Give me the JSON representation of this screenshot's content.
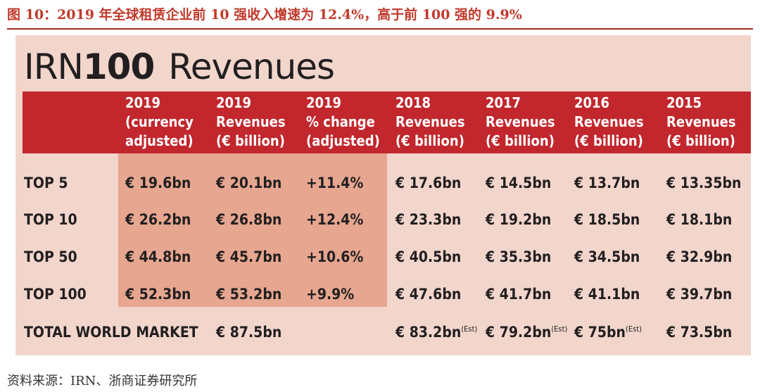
{
  "caption": "图 10：2019 年全球租赁企业前 10 强收入增速为 12.4%，高于前 100 强的 9.9%",
  "heading": {
    "prefix": "IRN",
    "number": "100",
    "word": "Revenues"
  },
  "columns": [
    {
      "l1": "2019",
      "l2": "(currency",
      "l3": "adjusted)"
    },
    {
      "l1": "2019",
      "l2": "Revenues",
      "l3": "(€ billion)"
    },
    {
      "l1": "2019",
      "l2": "% change",
      "l3": "(adjusted)"
    },
    {
      "l1": "2018",
      "l2": "Revenues",
      "l3": "(€ billion)"
    },
    {
      "l1": "2017",
      "l2": "Revenues",
      "l3": "(€ billion)"
    },
    {
      "l1": "2016",
      "l2": "Revenues",
      "l3": "(€ billion)"
    },
    {
      "l1": "2015",
      "l2": "Revenues",
      "l3": "(€ billion)"
    }
  ],
  "rows": [
    {
      "label": "TOP 5",
      "c": [
        "€ 19.6bn",
        "€ 20.1bn",
        "+11.4%",
        "€ 17.6bn",
        "€ 14.5bn",
        "€ 13.7bn",
        "€ 13.35bn"
      ]
    },
    {
      "label": "TOP 10",
      "c": [
        "€ 26.2bn",
        "€ 26.8bn",
        "+12.4%",
        "€ 23.3bn",
        "€ 19.2bn",
        "€ 18.5bn",
        "€ 18.1bn"
      ]
    },
    {
      "label": "TOP 50",
      "c": [
        "€ 44.8bn",
        "€ 45.7bn",
        "+10.6%",
        "€ 40.5bn",
        "€ 35.3bn",
        "€ 34.5bn",
        "€ 32.9bn"
      ]
    },
    {
      "label": "TOP 100",
      "c": [
        "€ 52.3bn",
        "€ 53.2bn",
        "+9.9%",
        "€ 47.6bn",
        "€ 41.7bn",
        "€ 41.1bn",
        "€ 39.7bn"
      ]
    }
  ],
  "total": {
    "label": "TOTAL WORLD MARKET",
    "v2019": "€ 87.5bn",
    "v2018": "€ 83.2bn",
    "v2017": "€ 79.2bn",
    "v2016": "€ 75bn",
    "v2015": "€ 73.5bn",
    "est": "(Est)"
  },
  "source": "资料来源：IRN、浙商证券研究所"
}
